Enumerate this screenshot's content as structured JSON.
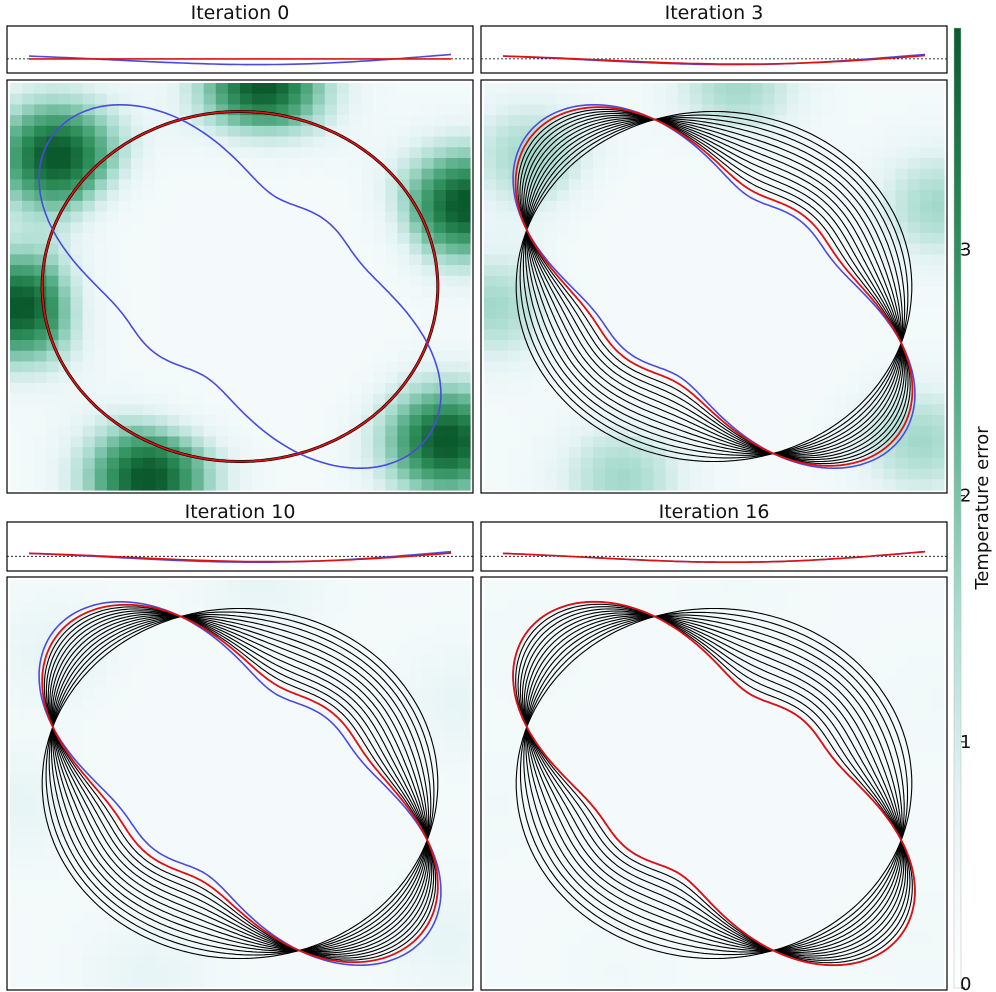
{
  "chart_data": {
    "type": "heatmap",
    "panels": [
      {
        "title": "Iteration 0",
        "iteration": 0,
        "morph_steps": 0,
        "red_fraction": 0.0,
        "background_intensity": 1.0
      },
      {
        "title": "Iteration 3",
        "iteration": 3,
        "morph_steps": 12,
        "red_fraction": 0.92,
        "background_intensity": 0.35
      },
      {
        "title": "Iteration 10",
        "iteration": 10,
        "morph_steps": 12,
        "red_fraction": 0.9,
        "background_intensity": 0.1
      },
      {
        "title": "Iteration 16",
        "iteration": 16,
        "morph_steps": 12,
        "red_fraction": 1.0,
        "background_intensity": 0.03
      }
    ],
    "series": [
      {
        "color": "#4a4adf"
      },
      {
        "color": "#e01010"
      },
      {
        "color": "#000000"
      }
    ],
    "colorbar": {
      "label": "Temperature error",
      "ticks": [
        "0",
        "1",
        "2",
        "3"
      ],
      "range": [
        0,
        3.9
      ],
      "colormap": [
        "#ffffff",
        "#e4f3f4",
        "#a7dbcd",
        "#5bb08b",
        "#2a8a55",
        "#0b5a2e"
      ]
    }
  }
}
